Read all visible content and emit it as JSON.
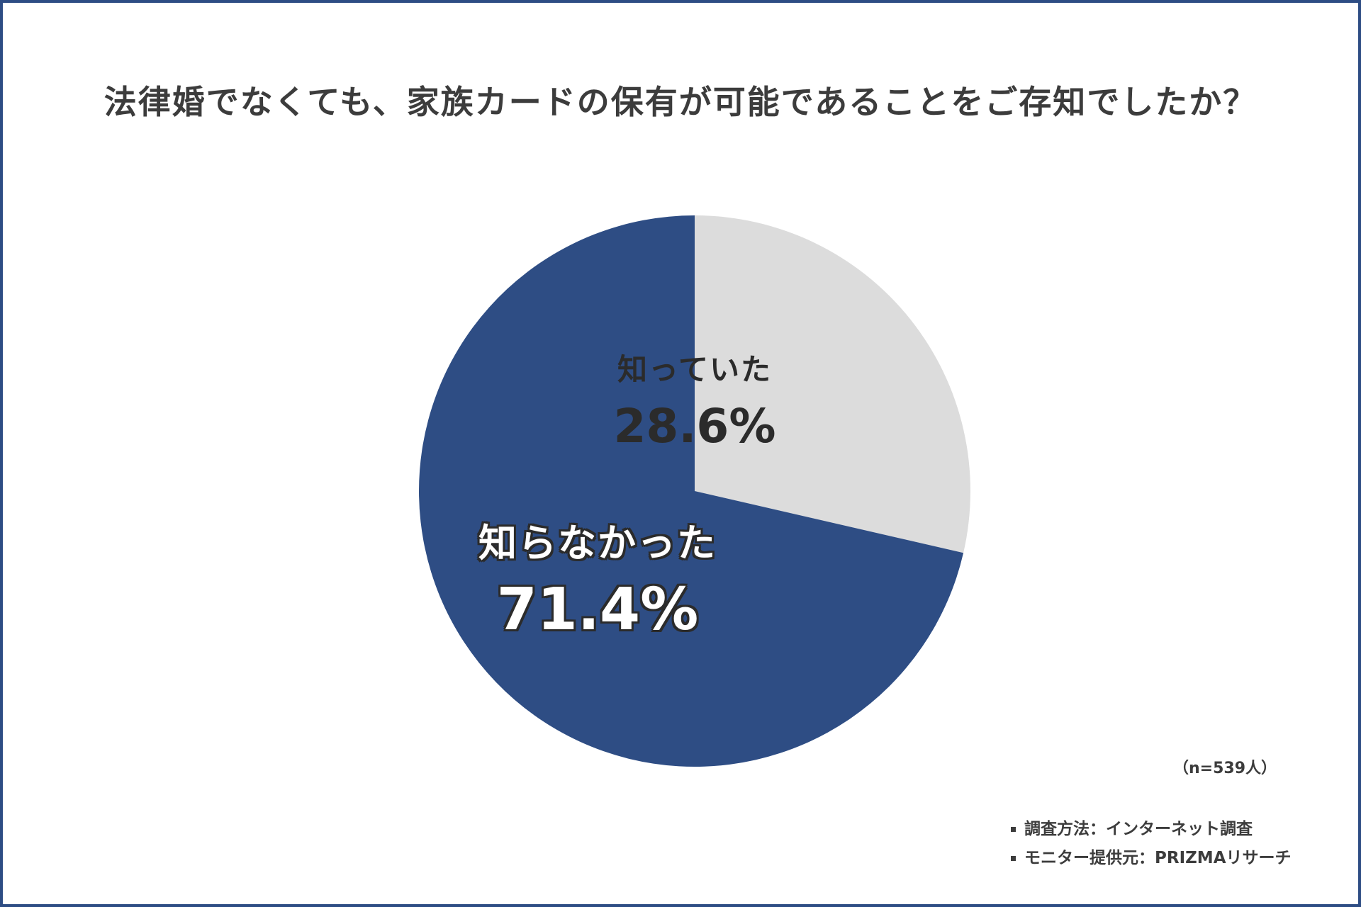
{
  "title": "法律婚でなくても、家族カードの保有が可能であることをご存知でしたか？",
  "chart_data": {
    "type": "pie",
    "slices": [
      {
        "label": "知っていた",
        "value": 28.6,
        "display": "28.6%",
        "color": "#dcdcdc"
      },
      {
        "label": "知らなかった",
        "value": 71.4,
        "display": "71.4%",
        "color": "#2e4d84"
      }
    ],
    "start": "12 o'clock",
    "direction": "clockwise"
  },
  "sample_size": "（n=539人）",
  "notes": [
    "調査方法：インターネット調査",
    "モニター提供元：PRIZMAリサーチ"
  ],
  "colors": {
    "frame": "#2e4d84",
    "text": "#3c3c3c"
  }
}
